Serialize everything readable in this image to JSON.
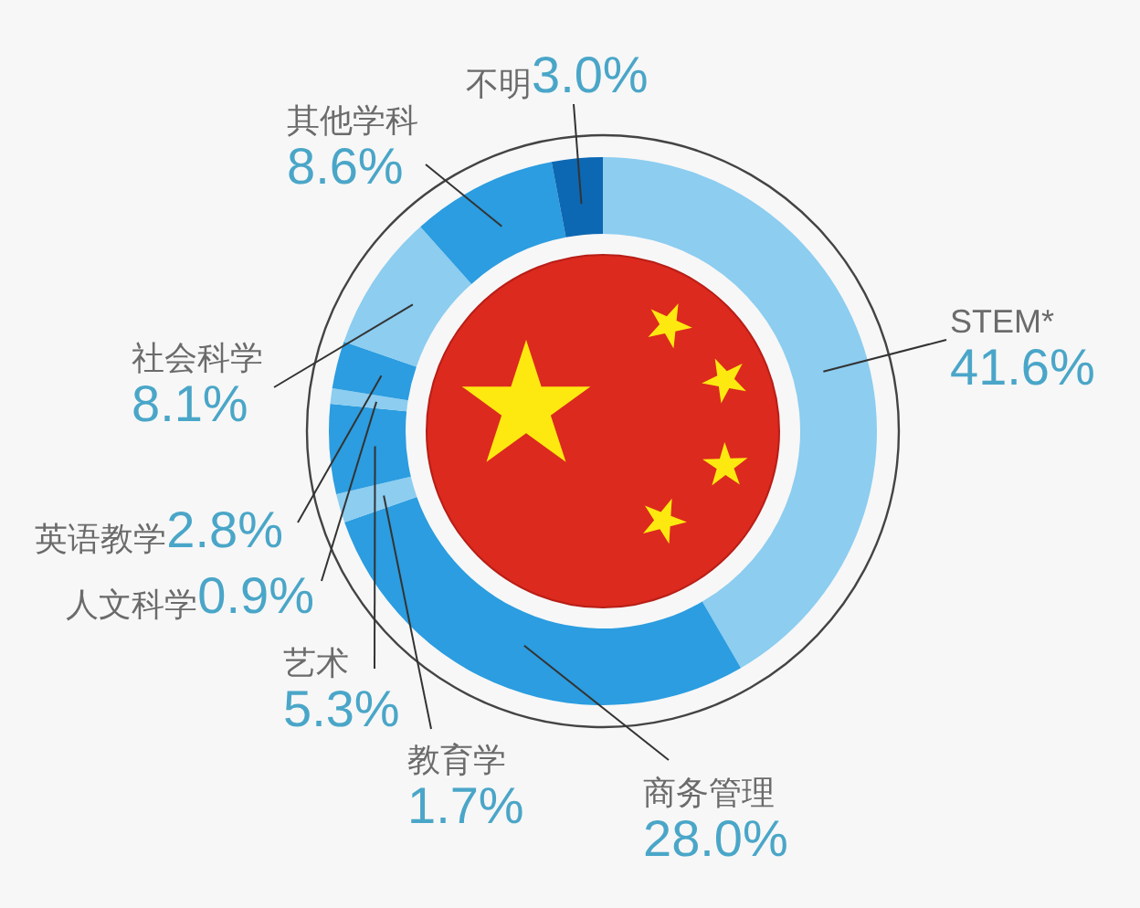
{
  "chart_data": {
    "type": "donut",
    "categories": [
      "STEM*",
      "商务管理",
      "教育学",
      "艺术",
      "人文科学",
      "英语教学",
      "社会科学",
      "其他学科",
      "不明"
    ],
    "values": [
      41.6,
      28.0,
      1.7,
      5.3,
      0.9,
      2.8,
      8.1,
      8.6,
      3.0
    ],
    "colors": [
      "#8ccdf0",
      "#2b9de0",
      "#8ccdf0",
      "#2b9de0",
      "#8ccdf0",
      "#2b9de0",
      "#8ccdf0",
      "#2b9de0",
      "#0d68b3"
    ],
    "value_labels": [
      "41.6%",
      "28.0%",
      "1.7%",
      "5.3%",
      "0.9%",
      "2.8%",
      "8.1%",
      "8.6%",
      "3.0%"
    ]
  }
}
